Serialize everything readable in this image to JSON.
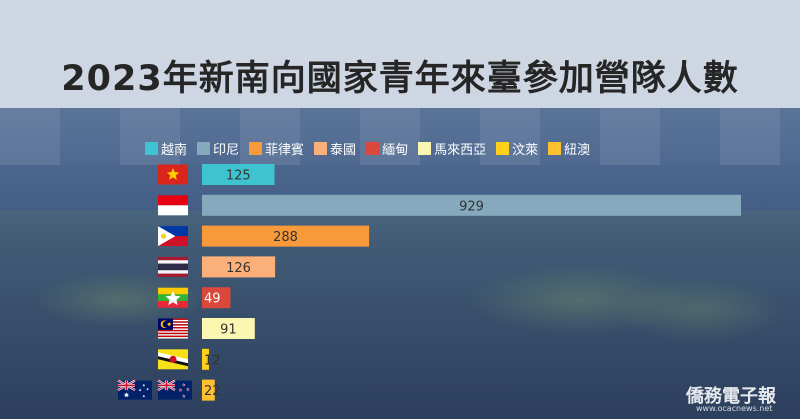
{
  "title": "2023年新南向國家青年來臺參加營隊人數",
  "legend": [
    {
      "label": "越南",
      "color": "#3ec3d0"
    },
    {
      "label": "印尼",
      "color": "#86a9bd"
    },
    {
      "label": "菲律賓",
      "color": "#f89a3a"
    },
    {
      "label": "泰國",
      "color": "#fbb07a"
    },
    {
      "label": "緬甸",
      "color": "#d9483b"
    },
    {
      "label": "馬來西亞",
      "color": "#fbf7b0"
    },
    {
      "label": "汶萊",
      "color": "#ffd11a"
    },
    {
      "label": "紐澳",
      "color": "#ffc02e"
    }
  ],
  "flags": [
    "vietnam-flag",
    "indonesia-flag",
    "philippines-flag",
    "thailand-flag",
    "myanmar-flag",
    "malaysia-flag",
    "brunei-flag",
    "australia-flag",
    "new-zealand-flag"
  ],
  "chart_data": {
    "type": "bar",
    "orientation": "horizontal",
    "categories": [
      "越南",
      "印尼",
      "菲律賓",
      "泰國",
      "緬甸",
      "馬來西亞",
      "汶萊",
      "紐澳"
    ],
    "values": [
      125,
      929,
      288,
      126,
      49,
      91,
      12,
      22
    ],
    "colors": [
      "#3ec3d0",
      "#86a9bd",
      "#f89a3a",
      "#fbb07a",
      "#d9483b",
      "#fbf7b0",
      "#ffd11a",
      "#ffc02e"
    ],
    "label_colors": [
      "#333333",
      "#333333",
      "#333333",
      "#333333",
      "#ffffff",
      "#333333",
      "#333333",
      "#333333"
    ],
    "xlim": [
      0,
      929
    ],
    "legend_position": "top",
    "grid": false
  },
  "watermark": {
    "text": "僑務電子報",
    "url": "www.ocacnews.net"
  }
}
